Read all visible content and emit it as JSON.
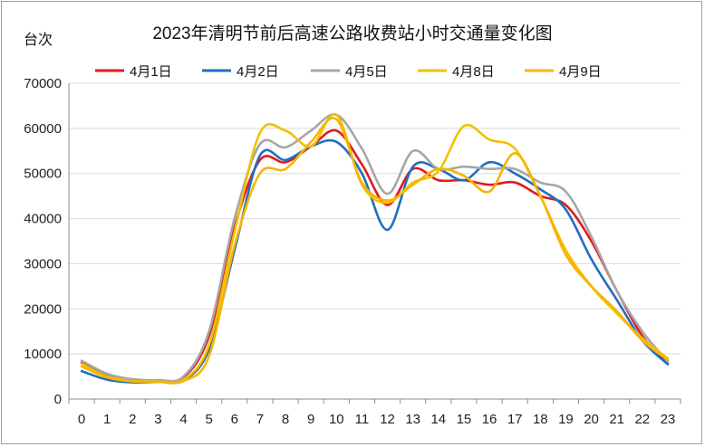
{
  "chart_data": {
    "type": "line",
    "title": "2023年清明节前后高速公路收费站小时交通量变化图",
    "unit_label": "台次",
    "xlabel": "",
    "ylabel": "",
    "ylim": [
      0,
      70000
    ],
    "yticks": [
      0,
      10000,
      20000,
      30000,
      40000,
      50000,
      60000,
      70000
    ],
    "categories": [
      "0",
      "1",
      "2",
      "3",
      "4",
      "5",
      "6",
      "7",
      "8",
      "9",
      "10",
      "11",
      "12",
      "13",
      "14",
      "15",
      "16",
      "17",
      "18",
      "19",
      "20",
      "21",
      "22",
      "23"
    ],
    "grid": true,
    "legend_position": "top",
    "series": [
      {
        "name": "4月1日",
        "color": "#e31a1c",
        "values": [
          8000,
          5200,
          4200,
          4000,
          4800,
          14000,
          38000,
          53000,
          52500,
          56000,
          59500,
          52000,
          43000,
          51000,
          48500,
          48500,
          47500,
          48000,
          45000,
          43000,
          35000,
          24000,
          14000,
          8000
        ]
      },
      {
        "name": "4月2日",
        "color": "#1f6fbf",
        "values": [
          6200,
          4300,
          3700,
          3800,
          4200,
          11000,
          33000,
          54000,
          53000,
          56000,
          57000,
          50000,
          37500,
          51500,
          51000,
          48500,
          52500,
          50000,
          46500,
          42000,
          31000,
          22000,
          13000,
          7700
        ]
      },
      {
        "name": "4月5日",
        "color": "#a6a6a6",
        "values": [
          8500,
          5600,
          4400,
          4200,
          5000,
          15000,
          40000,
          56500,
          55800,
          59500,
          63000,
          55500,
          45500,
          55000,
          51000,
          51500,
          51000,
          51000,
          48000,
          46000,
          36000,
          24000,
          15000,
          8300
        ]
      },
      {
        "name": "4月8日",
        "color": "#f2c100",
        "values": [
          7800,
          5000,
          4000,
          3900,
          4300,
          12000,
          37000,
          59000,
          59500,
          56000,
          63000,
          47500,
          43500,
          48000,
          50500,
          60500,
          57500,
          55500,
          45000,
          33000,
          25000,
          19000,
          13500,
          9000
        ]
      },
      {
        "name": "4月9日",
        "color": "#f7b500",
        "values": [
          7200,
          4800,
          3900,
          3800,
          4000,
          9500,
          34000,
          50000,
          51000,
          57000,
          62000,
          48000,
          44000,
          47500,
          51000,
          49500,
          46000,
          54500,
          45000,
          32000,
          25000,
          19500,
          13000,
          8700
        ]
      }
    ]
  }
}
